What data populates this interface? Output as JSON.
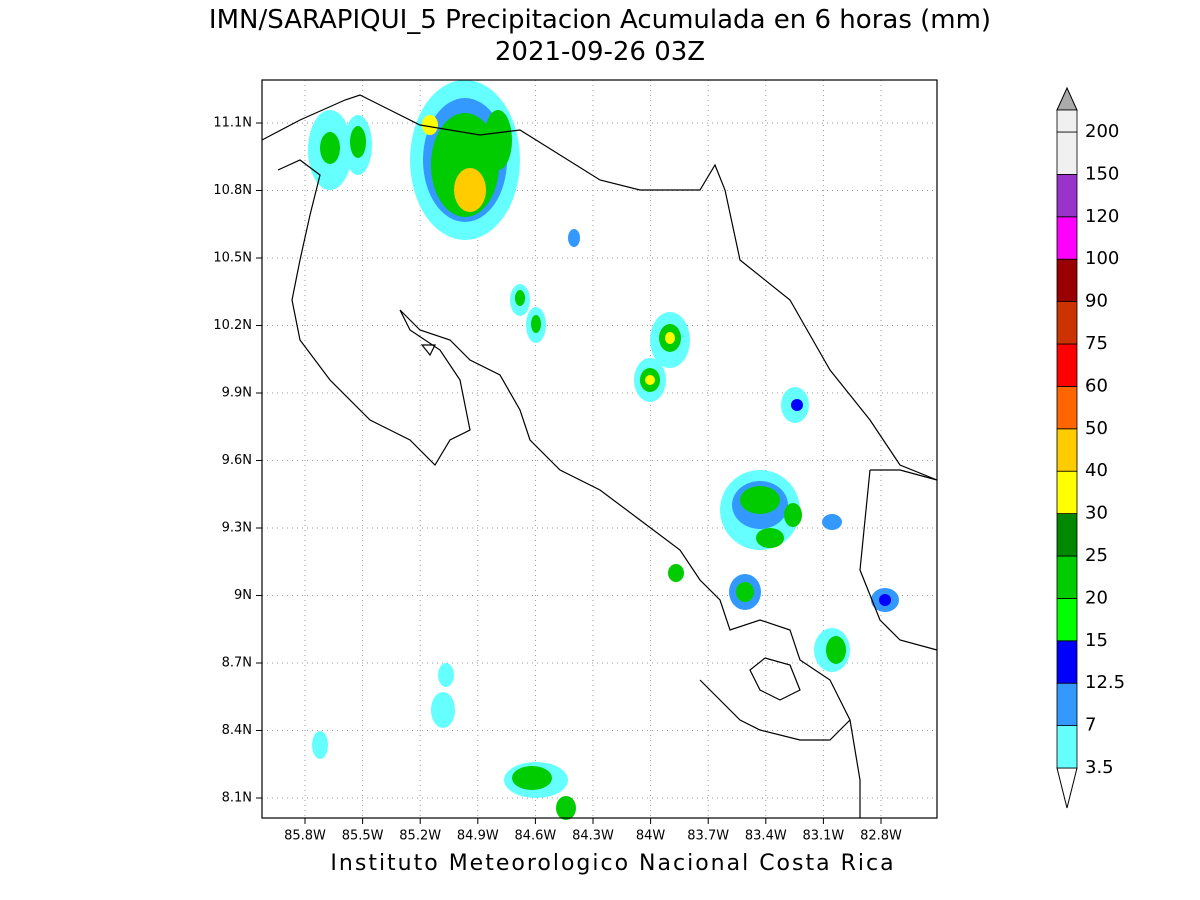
{
  "title": "IMN/SARAPIQUI_5 Precipitacion Acumulada en 6 horas (mm)",
  "subtitle": "2021-09-26 03Z",
  "x_axis": {
    "ticks": [
      "85.8W",
      "85.5W",
      "85.2W",
      "84.9W",
      "84.6W",
      "84.3W",
      "84W",
      "83.7W",
      "83.4W",
      "83.1W",
      "82.8W"
    ]
  },
  "y_axis": {
    "ticks": [
      "11.1N",
      "10.8N",
      "10.5N",
      "10.2N",
      "9.9N",
      "9.6N",
      "9.3N",
      "9N",
      "8.7N",
      "8.4N",
      "8.1N"
    ]
  },
  "colorbar": {
    "levels": [
      3.5,
      7,
      12.5,
      15,
      20,
      25,
      30,
      40,
      50,
      60,
      75,
      90,
      100,
      120,
      150,
      200
    ],
    "colors": [
      "#66ffff",
      "#3399ff",
      "#0000ff",
      "#00ff00",
      "#00cc00",
      "#008800",
      "#ffff00",
      "#ffcc00",
      "#ff6600",
      "#ff0000",
      "#cc3300",
      "#990000",
      "#ff00ff",
      "#9933cc",
      "#f0f0f0"
    ]
  },
  "footer": "Instituto Meteorologico Nacional Costa Rica"
}
